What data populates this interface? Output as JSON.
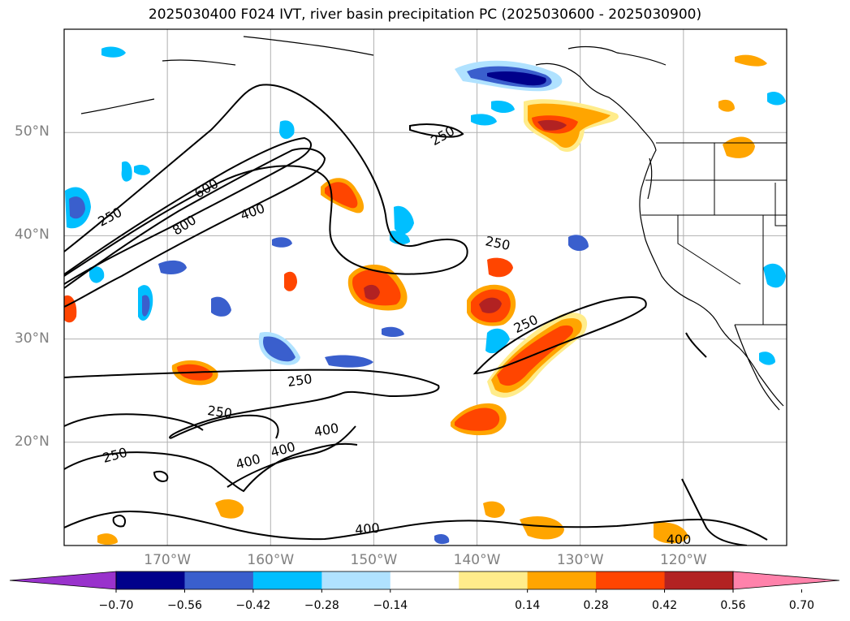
{
  "title": "2025030400 F024 IVT, river basin precipitation PC (2025030600 - 2025030900)",
  "map": {
    "projection": "equirectangular",
    "lon_range": [
      -180,
      -110
    ],
    "lat_range": [
      10,
      60
    ],
    "gridlines": true,
    "lat_labels": [
      "50°N",
      "40°N",
      "30°N",
      "20°N"
    ],
    "lon_labels": [
      "170°W",
      "160°W",
      "150°W",
      "140°W",
      "130°W",
      "120°W"
    ],
    "ivt_contour_labels": [
      "250",
      "600",
      "800",
      "400",
      "250",
      "250",
      "250",
      "250",
      "250",
      "400",
      "400",
      "400",
      "250",
      "400",
      "400"
    ]
  },
  "colorbar": {
    "ticks": [
      "−0.70",
      "−0.56",
      "−0.42",
      "−0.28",
      "−0.14",
      "0.14",
      "0.28",
      "0.42",
      "0.56",
      "0.70"
    ],
    "colors": [
      "#9932cc",
      "#00008b",
      "#3a5fcd",
      "#00bfff",
      "#b0e2ff",
      "#ffffff",
      "#ffec8b",
      "#ffa500",
      "#ff4500",
      "#b22222",
      "#ff82ab"
    ]
  }
}
